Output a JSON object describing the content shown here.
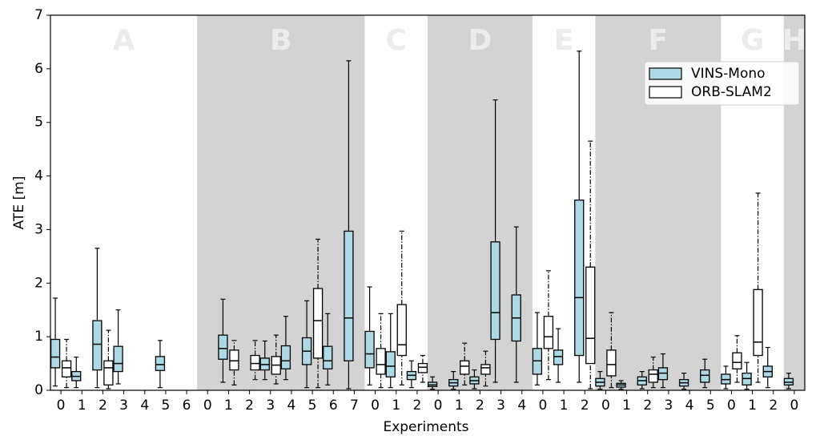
{
  "chart_data": {
    "type": "box",
    "x_label": "Experiments",
    "y_label": "ATE [m]",
    "ylim": [
      0,
      7
    ],
    "yticks": [
      0,
      1,
      2,
      3,
      4,
      5,
      6,
      7
    ],
    "shade_color": "#d3d3d3",
    "legend": "upper right",
    "groups": [
      {
        "name": "A",
        "shaded": false,
        "categories": [
          "0",
          "1",
          "2",
          "3",
          "4",
          "5",
          "6"
        ]
      },
      {
        "name": "B",
        "shaded": true,
        "categories": [
          "0",
          "1",
          "2",
          "3",
          "4",
          "5",
          "6",
          "7"
        ]
      },
      {
        "name": "C",
        "shaded": false,
        "categories": [
          "0",
          "1",
          "2"
        ]
      },
      {
        "name": "D",
        "shaded": true,
        "categories": [
          "0",
          "1",
          "2",
          "3",
          "4"
        ]
      },
      {
        "name": "E",
        "shaded": false,
        "categories": [
          "0",
          "1",
          "2"
        ]
      },
      {
        "name": "F",
        "shaded": true,
        "categories": [
          "0",
          "1",
          "2",
          "3",
          "4",
          "5"
        ]
      },
      {
        "name": "G",
        "shaded": false,
        "categories": [
          "0",
          "1",
          "2"
        ]
      },
      {
        "name": "H",
        "shaded": true,
        "categories": [
          "0"
        ]
      }
    ],
    "series": [
      {
        "name": "VINS-Mono",
        "color": "#add8e6",
        "whisker_style": "solid",
        "values": [
          [
            0.08,
            0.42,
            0.62,
            0.95,
            1.72
          ],
          [
            0.05,
            0.18,
            0.26,
            0.35,
            0.62
          ],
          [
            0.05,
            0.38,
            0.86,
            1.3,
            2.65
          ],
          [
            0.12,
            0.35,
            0.5,
            0.82,
            1.5
          ],
          null,
          [
            0.05,
            0.37,
            0.48,
            0.63,
            0.93
          ],
          null,
          null,
          [
            0.15,
            0.58,
            0.78,
            1.03,
            1.7
          ],
          null,
          [
            0.2,
            0.38,
            0.48,
            0.6,
            0.92
          ],
          [
            0.2,
            0.4,
            0.55,
            0.83,
            1.38
          ],
          [
            0.05,
            0.48,
            0.73,
            0.98,
            1.67
          ],
          [
            0.1,
            0.4,
            0.55,
            0.82,
            1.43
          ],
          [
            0.03,
            0.55,
            1.35,
            2.97,
            6.15
          ],
          [
            0.1,
            0.42,
            0.68,
            1.1,
            1.93
          ],
          [
            0.05,
            0.25,
            0.45,
            0.72,
            1.43
          ],
          [
            0.05,
            0.2,
            0.28,
            0.35,
            0.55
          ],
          [
            0.02,
            0.07,
            0.1,
            0.15,
            0.25
          ],
          [
            0.02,
            0.08,
            0.14,
            0.2,
            0.35
          ],
          [
            0.03,
            0.12,
            0.18,
            0.25,
            0.38
          ],
          [
            0.15,
            0.95,
            1.45,
            2.77,
            5.42
          ],
          [
            0.15,
            0.92,
            1.35,
            1.78,
            3.05
          ],
          [
            0.1,
            0.3,
            0.55,
            0.78,
            1.45
          ],
          [
            0.15,
            0.48,
            0.63,
            0.75,
            1.15
          ],
          [
            0.15,
            0.65,
            1.73,
            3.55,
            6.33
          ],
          [
            0.02,
            0.08,
            0.15,
            0.22,
            0.35
          ],
          [
            0.02,
            0.06,
            0.1,
            0.13,
            0.18
          ],
          [
            0.03,
            0.1,
            0.18,
            0.25,
            0.35
          ],
          [
            0.05,
            0.2,
            0.32,
            0.42,
            0.68
          ],
          [
            0.02,
            0.08,
            0.14,
            0.2,
            0.32
          ],
          [
            0.05,
            0.15,
            0.28,
            0.38,
            0.58
          ],
          [
            0.03,
            0.12,
            0.2,
            0.3,
            0.45
          ],
          [
            0.02,
            0.1,
            0.22,
            0.32,
            0.52
          ],
          [
            0.05,
            0.25,
            0.35,
            0.45,
            0.8
          ],
          [
            0.03,
            0.1,
            0.15,
            0.22,
            0.32
          ]
        ]
      },
      {
        "name": "ORB-SLAM2",
        "color": "#ffffff",
        "whisker_style": "dashdot",
        "values": [
          [
            0.05,
            0.25,
            0.42,
            0.55,
            0.95
          ],
          null,
          [
            0.03,
            0.1,
            0.42,
            0.55,
            1.12
          ],
          null,
          null,
          null,
          null,
          null,
          [
            0.1,
            0.38,
            0.55,
            0.75,
            0.93
          ],
          [
            0.2,
            0.38,
            0.5,
            0.65,
            0.93
          ],
          [
            0.12,
            0.3,
            0.47,
            0.63,
            1.03
          ],
          null,
          [
            0.05,
            0.6,
            1.3,
            1.9,
            2.82
          ],
          null,
          null,
          [
            0.05,
            0.3,
            0.48,
            0.78,
            1.43
          ],
          [
            0.1,
            0.65,
            0.85,
            1.6,
            2.97
          ],
          [
            0.15,
            0.33,
            0.43,
            0.5,
            0.65
          ],
          null,
          [
            0.1,
            0.3,
            0.45,
            0.55,
            0.88
          ],
          [
            0.08,
            0.3,
            0.42,
            0.48,
            0.73
          ],
          null,
          null,
          [
            0.2,
            0.78,
            1.0,
            1.38,
            2.23
          ],
          null,
          [
            0.03,
            0.5,
            0.97,
            2.3,
            4.65
          ],
          [
            0.05,
            0.27,
            0.48,
            0.75,
            1.45
          ],
          null,
          [
            0.05,
            0.15,
            0.3,
            0.38,
            0.62
          ],
          null,
          null,
          null,
          [
            0.15,
            0.4,
            0.52,
            0.7,
            1.02
          ],
          [
            0.15,
            0.65,
            0.9,
            1.88,
            3.68
          ],
          null,
          null
        ]
      }
    ]
  }
}
